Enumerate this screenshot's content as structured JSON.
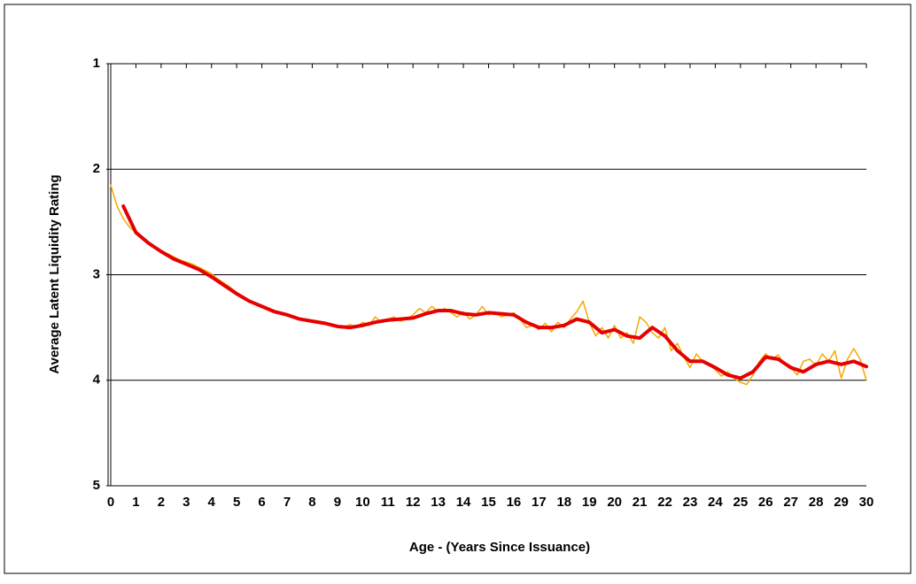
{
  "chart_data": {
    "type": "line",
    "xlabel": "Age - (Years Since Issuance)",
    "ylabel": "Average Latent Liquidity Rating",
    "xlim": [
      0,
      30
    ],
    "xticks": [
      0,
      1,
      2,
      3,
      4,
      5,
      6,
      7,
      8,
      9,
      10,
      11,
      12,
      13,
      14,
      15,
      16,
      17,
      18,
      19,
      20,
      21,
      22,
      23,
      24,
      25,
      26,
      27,
      28,
      29,
      30
    ],
    "ylim": [
      1,
      5
    ],
    "yticks": [
      1,
      2,
      3,
      4,
      5
    ],
    "y_reversed": true,
    "grid": true,
    "series": [
      {
        "color": "#f5a800",
        "width": 1.5,
        "x": [
          0,
          0.25,
          0.5,
          0.75,
          1,
          1.25,
          1.5,
          1.75,
          2,
          2.25,
          2.5,
          2.75,
          3,
          3.25,
          3.5,
          3.75,
          4,
          4.25,
          4.5,
          4.75,
          5,
          5.25,
          5.5,
          5.75,
          6,
          6.25,
          6.5,
          6.75,
          7,
          7.25,
          7.5,
          7.75,
          8,
          8.25,
          8.5,
          8.75,
          9,
          9.25,
          9.5,
          9.75,
          10,
          10.25,
          10.5,
          10.75,
          11,
          11.25,
          11.5,
          11.75,
          12,
          12.25,
          12.5,
          12.75,
          13,
          13.25,
          13.5,
          13.75,
          14,
          14.25,
          14.5,
          14.75,
          15,
          15.25,
          15.5,
          15.75,
          16,
          16.25,
          16.5,
          16.75,
          17,
          17.25,
          17.5,
          17.75,
          18,
          18.25,
          18.5,
          18.75,
          19,
          19.25,
          19.5,
          19.75,
          20,
          20.25,
          20.5,
          20.75,
          21,
          21.25,
          21.5,
          21.75,
          22,
          22.25,
          22.5,
          22.75,
          23,
          23.25,
          23.5,
          23.75,
          24,
          24.25,
          24.5,
          24.75,
          25,
          25.25,
          25.5,
          25.75,
          26,
          26.25,
          26.5,
          26.75,
          27,
          27.25,
          27.5,
          27.75,
          28,
          28.25,
          28.5,
          28.75,
          29,
          29.25,
          29.5,
          29.75,
          30
        ],
        "values": [
          2.15,
          2.35,
          2.47,
          2.55,
          2.6,
          2.65,
          2.7,
          2.74,
          2.78,
          2.8,
          2.83,
          2.86,
          2.88,
          2.9,
          2.93,
          2.96,
          2.99,
          3.04,
          3.08,
          3.12,
          3.17,
          3.22,
          3.26,
          3.28,
          3.3,
          3.33,
          3.35,
          3.36,
          3.37,
          3.4,
          3.42,
          3.43,
          3.44,
          3.44,
          3.46,
          3.47,
          3.48,
          3.5,
          3.47,
          3.5,
          3.45,
          3.48,
          3.4,
          3.45,
          3.42,
          3.4,
          3.44,
          3.42,
          3.38,
          3.32,
          3.36,
          3.3,
          3.35,
          3.32,
          3.36,
          3.4,
          3.35,
          3.42,
          3.38,
          3.3,
          3.38,
          3.35,
          3.4,
          3.38,
          3.36,
          3.42,
          3.5,
          3.48,
          3.52,
          3.46,
          3.54,
          3.45,
          3.5,
          3.42,
          3.35,
          3.25,
          3.45,
          3.58,
          3.5,
          3.6,
          3.48,
          3.6,
          3.55,
          3.65,
          3.4,
          3.45,
          3.55,
          3.6,
          3.5,
          3.72,
          3.65,
          3.78,
          3.88,
          3.75,
          3.82,
          3.85,
          3.9,
          3.96,
          3.92,
          3.98,
          4.02,
          4.04,
          3.95,
          3.82,
          3.75,
          3.8,
          3.76,
          3.85,
          3.88,
          3.95,
          3.82,
          3.8,
          3.86,
          3.75,
          3.82,
          3.72,
          3.98,
          3.8,
          3.7,
          3.8,
          4.0
        ]
      },
      {
        "color": "#e60000",
        "width": 4,
        "x": [
          0.5,
          1,
          1.5,
          2,
          2.5,
          3,
          3.5,
          4,
          4.5,
          5,
          5.5,
          6,
          6.5,
          7,
          7.5,
          8,
          8.5,
          9,
          9.5,
          10,
          10.5,
          11,
          11.5,
          12,
          12.5,
          13,
          13.5,
          14,
          14.5,
          15,
          15.5,
          16,
          16.5,
          17,
          17.5,
          18,
          18.5,
          19,
          19.5,
          20,
          20.5,
          21,
          21.5,
          22,
          22.5,
          23,
          23.5,
          24,
          24.5,
          25,
          25.5,
          26,
          26.5,
          27,
          27.5,
          28,
          28.5,
          29,
          29.5,
          30
        ],
        "values": [
          2.35,
          2.6,
          2.7,
          2.78,
          2.85,
          2.9,
          2.95,
          3.02,
          3.1,
          3.18,
          3.25,
          3.3,
          3.35,
          3.38,
          3.42,
          3.44,
          3.46,
          3.49,
          3.5,
          3.48,
          3.45,
          3.43,
          3.42,
          3.41,
          3.37,
          3.34,
          3.34,
          3.37,
          3.38,
          3.36,
          3.37,
          3.38,
          3.45,
          3.5,
          3.5,
          3.48,
          3.42,
          3.45,
          3.55,
          3.52,
          3.58,
          3.6,
          3.5,
          3.58,
          3.72,
          3.82,
          3.82,
          3.88,
          3.95,
          3.98,
          3.92,
          3.78,
          3.8,
          3.88,
          3.92,
          3.85,
          3.82,
          3.85,
          3.82,
          3.87
        ]
      }
    ]
  }
}
